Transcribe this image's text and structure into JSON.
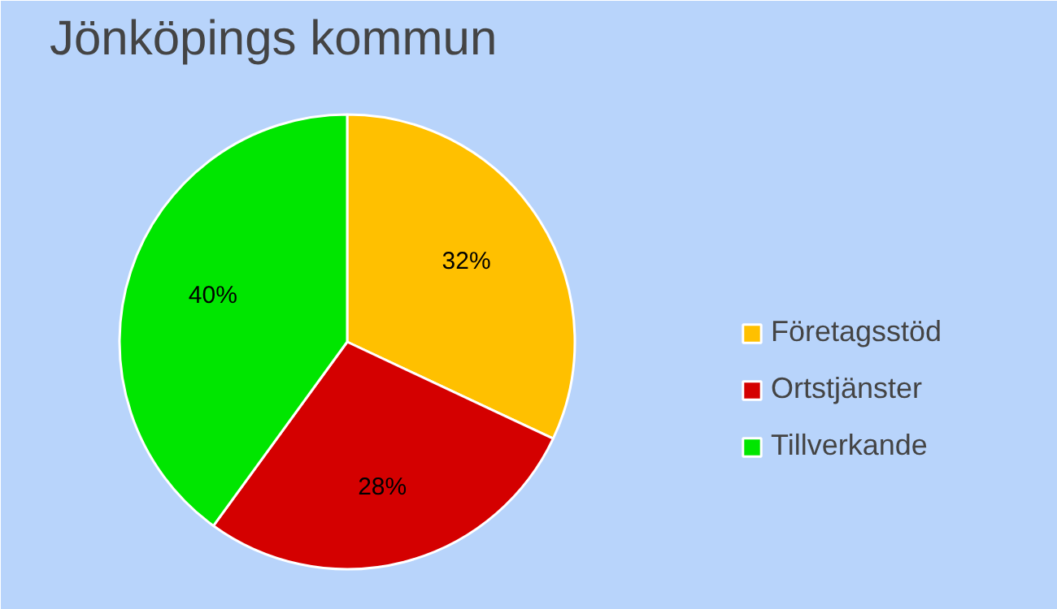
{
  "chart_data": {
    "type": "pie",
    "title": "Jönköpings kommun",
    "categories": [
      "Företagsstöd",
      "Ortstjänster",
      "Tillverkande"
    ],
    "values": [
      32,
      28,
      40
    ],
    "colors": [
      "#ffc000",
      "#d40000",
      "#00e600"
    ],
    "value_labels": [
      "32%",
      "28%",
      "40%"
    ],
    "legend": "right"
  }
}
